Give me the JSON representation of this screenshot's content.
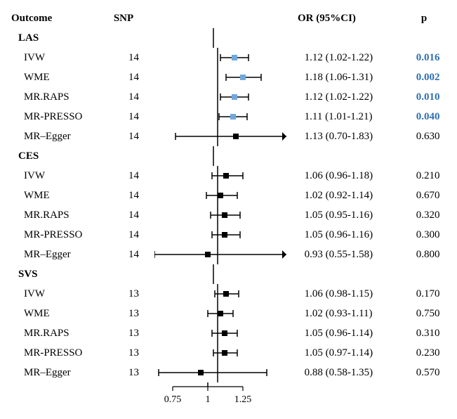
{
  "columns": {
    "outcome": "Outcome",
    "snp": "SNP",
    "or": "OR (95%CI)",
    "p": "p"
  },
  "plot": {
    "xmin": 0.55,
    "xmax": 1.5,
    "ref": 1.0,
    "ticks": [
      0.75,
      1,
      1.25
    ],
    "tick_labels": [
      "0.75",
      "1",
      "1.25"
    ],
    "line_color": "#000000",
    "marker_normal_fill": "#000000",
    "marker_sig_fill": "#6fa8dc",
    "marker_size": 8,
    "arrow_size": 6,
    "tick_fontsize": 14
  },
  "colors": {
    "text": "#000000",
    "sig_p": "#2f6fb0",
    "background": "#ffffff"
  },
  "fonts": {
    "family": "Times New Roman",
    "size": 15,
    "header_weight": "bold"
  },
  "groups": [
    {
      "label": "LAS",
      "rows": [
        {
          "method": "IVW",
          "snp": "14",
          "or": 1.12,
          "lo": 1.02,
          "hi": 1.22,
          "or_text": "1.12 (1.02-1.22)",
          "p": "0.016",
          "sig": true
        },
        {
          "method": "WME",
          "snp": "14",
          "or": 1.18,
          "lo": 1.06,
          "hi": 1.31,
          "or_text": "1.18 (1.06-1.31)",
          "p": "0.002",
          "sig": true
        },
        {
          "method": "MR.RAPS",
          "snp": "14",
          "or": 1.12,
          "lo": 1.02,
          "hi": 1.22,
          "or_text": "1.12 (1.02-1.22)",
          "p": "0.010",
          "sig": true
        },
        {
          "method": "MR-PRESSO",
          "snp": "14",
          "or": 1.11,
          "lo": 1.01,
          "hi": 1.21,
          "or_text": "1.11 (1.01-1.21)",
          "p": "0.040",
          "sig": true
        },
        {
          "method": "MR–Egger",
          "snp": "14",
          "or": 1.13,
          "lo": 0.7,
          "hi": 1.83,
          "or_text": "1.13 (0.70-1.83)",
          "p": "0.630",
          "sig": false
        }
      ]
    },
    {
      "label": "CES",
      "rows": [
        {
          "method": "IVW",
          "snp": "14",
          "or": 1.06,
          "lo": 0.96,
          "hi": 1.18,
          "or_text": "1.06 (0.96-1.18)",
          "p": "0.210",
          "sig": false
        },
        {
          "method": "WME",
          "snp": "14",
          "or": 1.02,
          "lo": 0.92,
          "hi": 1.14,
          "or_text": "1.02 (0.92-1.14)",
          "p": "0.670",
          "sig": false
        },
        {
          "method": "MR.RAPS",
          "snp": "14",
          "or": 1.05,
          "lo": 0.95,
          "hi": 1.16,
          "or_text": "1.05 (0.95-1.16)",
          "p": "0.320",
          "sig": false
        },
        {
          "method": "MR-PRESSO",
          "snp": "14",
          "or": 1.05,
          "lo": 0.96,
          "hi": 1.16,
          "or_text": "1.05 (0.96-1.16)",
          "p": "0.300",
          "sig": false
        },
        {
          "method": "MR–Egger",
          "snp": "14",
          "or": 0.93,
          "lo": 0.55,
          "hi": 1.58,
          "or_text": "0.93 (0.55-1.58)",
          "p": "0.800",
          "sig": false
        }
      ]
    },
    {
      "label": "SVS",
      "rows": [
        {
          "method": "IVW",
          "snp": "13",
          "or": 1.06,
          "lo": 0.98,
          "hi": 1.15,
          "or_text": "1.06 (0.98-1.15)",
          "p": "0.170",
          "sig": false
        },
        {
          "method": "WME",
          "snp": "13",
          "or": 1.02,
          "lo": 0.93,
          "hi": 1.11,
          "or_text": "1.02 (0.93-1.11)",
          "p": "0.750",
          "sig": false
        },
        {
          "method": "MR.RAPS",
          "snp": "13",
          "or": 1.05,
          "lo": 0.96,
          "hi": 1.14,
          "or_text": "1.05 (0.96-1.14)",
          "p": "0.310",
          "sig": false
        },
        {
          "method": "MR-PRESSO",
          "snp": "13",
          "or": 1.05,
          "lo": 0.97,
          "hi": 1.14,
          "or_text": "1.05 (0.97-1.14)",
          "p": "0.230",
          "sig": false
        },
        {
          "method": "MR–Egger",
          "snp": "13",
          "or": 0.88,
          "lo": 0.58,
          "hi": 1.35,
          "or_text": "0.88 (0.58-1.35)",
          "p": "0.570",
          "sig": false
        }
      ]
    }
  ]
}
